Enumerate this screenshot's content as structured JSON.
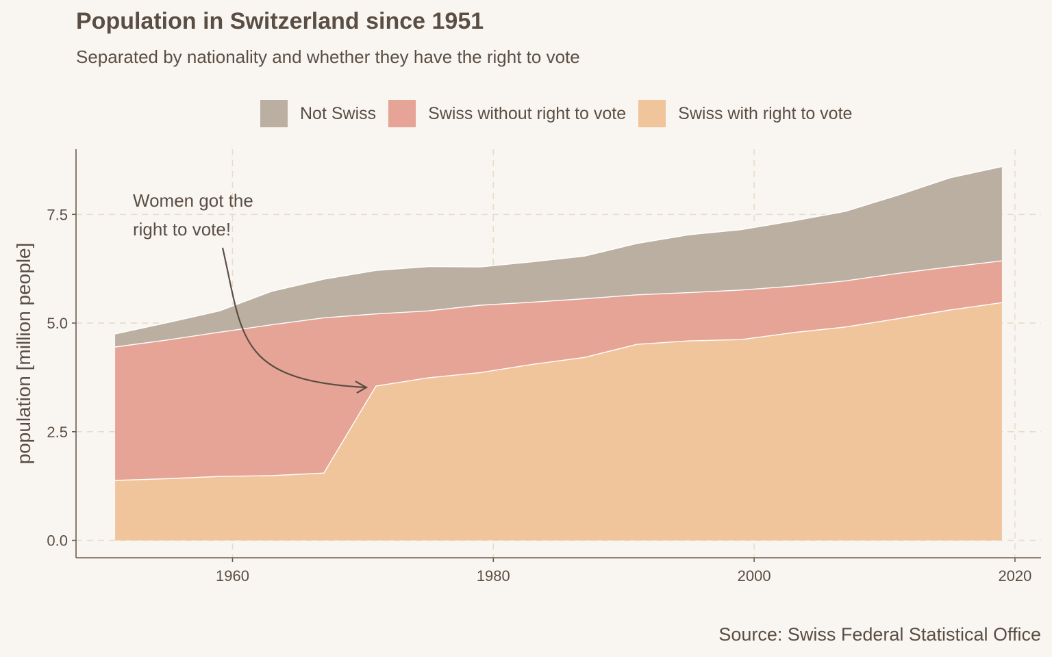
{
  "title": "Population in Switzerland since 1951",
  "subtitle": "Separated by nationality and whether they have the right to vote",
  "source": "Source: Swiss Federal Statistical Office",
  "colors": {
    "background": "#F9F6F1",
    "not_swiss": "#BBAFA1",
    "swiss_without_vote": "#E5A496",
    "swiss_with_vote": "#F1C59B",
    "text": "#5A4E44",
    "grid": "#E6DCCB"
  },
  "chart_data": {
    "type": "area",
    "stacked": true,
    "x": [
      1951,
      1955,
      1959,
      1963,
      1967,
      1971,
      1975,
      1979,
      1983,
      1987,
      1991,
      1995,
      1999,
      2003,
      2007,
      2011,
      2015,
      2019
    ],
    "series": [
      {
        "name": "Swiss with right to vote",
        "values": [
          1.38,
          1.42,
          1.47,
          1.49,
          1.55,
          3.55,
          3.74,
          3.86,
          4.05,
          4.21,
          4.51,
          4.59,
          4.62,
          4.78,
          4.91,
          5.1,
          5.3,
          5.47
        ]
      },
      {
        "name": "Swiss without right to vote",
        "values": [
          3.07,
          3.19,
          3.32,
          3.47,
          3.57,
          1.66,
          1.54,
          1.55,
          1.43,
          1.35,
          1.14,
          1.11,
          1.14,
          1.07,
          1.06,
          1.04,
          0.99,
          0.96
        ]
      },
      {
        "name": "Not Swiss",
        "values": [
          0.3,
          0.4,
          0.49,
          0.77,
          0.89,
          1.0,
          1.02,
          0.88,
          0.93,
          0.98,
          1.18,
          1.33,
          1.39,
          1.5,
          1.6,
          1.8,
          2.05,
          2.17
        ]
      }
    ],
    "xlabel": "",
    "ylabel": "population [million people]",
    "xlim": [
      1948,
      2022
    ],
    "ylim": [
      -0.4,
      9.0
    ],
    "x_ticks": [
      1960,
      1980,
      2000,
      2020
    ],
    "y_ticks": [
      0.0,
      2.5,
      5.0,
      7.5
    ],
    "y_tick_labels": [
      "0.0",
      "2.5",
      "5.0",
      "7.5"
    ],
    "grid": true,
    "legend_position": "top",
    "legend": [
      "Not Swiss",
      "Swiss without right to vote",
      "Swiss with right to vote"
    ],
    "annotation": {
      "lines": [
        "Women got the",
        "right to vote!"
      ],
      "points_to": {
        "x": 1971,
        "y": 3.55
      }
    }
  }
}
